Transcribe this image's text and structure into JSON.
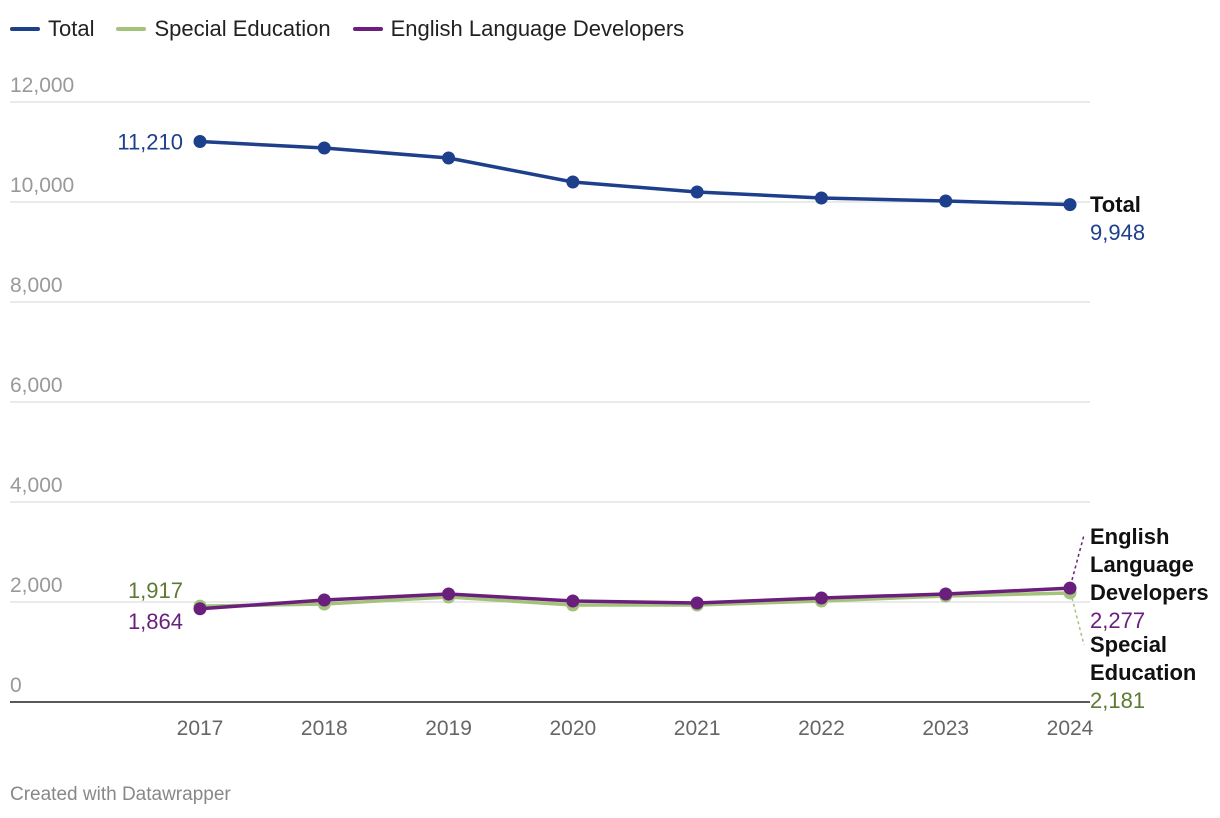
{
  "chart_data": {
    "type": "line",
    "x": [
      "2017",
      "2018",
      "2019",
      "2020",
      "2021",
      "2022",
      "2023",
      "2024"
    ],
    "ylim": [
      0,
      12000
    ],
    "yticks": [
      0,
      2000,
      4000,
      6000,
      8000,
      10000,
      12000
    ],
    "ytick_labels": [
      "0",
      "2,000",
      "4,000",
      "6,000",
      "8,000",
      "10,000",
      "12,000"
    ],
    "grid": true,
    "legend_position": "top-left",
    "series": [
      {
        "name": "Total",
        "color": "#1e3f8c",
        "label_color": "#1e3f8c",
        "values": [
          11210,
          11080,
          10880,
          10400,
          10200,
          10080,
          10020,
          9948
        ],
        "start_label": "11,210",
        "end_name": "Total",
        "end_value": "9,948"
      },
      {
        "name": "Special Education",
        "color": "#a3c27a",
        "label_color": "#5d7a32",
        "values": [
          1917,
          1960,
          2100,
          1940,
          1940,
          2020,
          2120,
          2181
        ],
        "start_label": "1,917",
        "end_name": "Special Education",
        "end_value": "2,181"
      },
      {
        "name": "English Language Developers",
        "color": "#6b1f7c",
        "label_color": "#6b1f7c",
        "values": [
          1864,
          2040,
          2160,
          2020,
          1980,
          2080,
          2160,
          2277
        ],
        "start_label": "1,864",
        "end_name": "English Language Developers",
        "end_value": "2,277"
      }
    ]
  },
  "footer": "Created with Datawrapper"
}
